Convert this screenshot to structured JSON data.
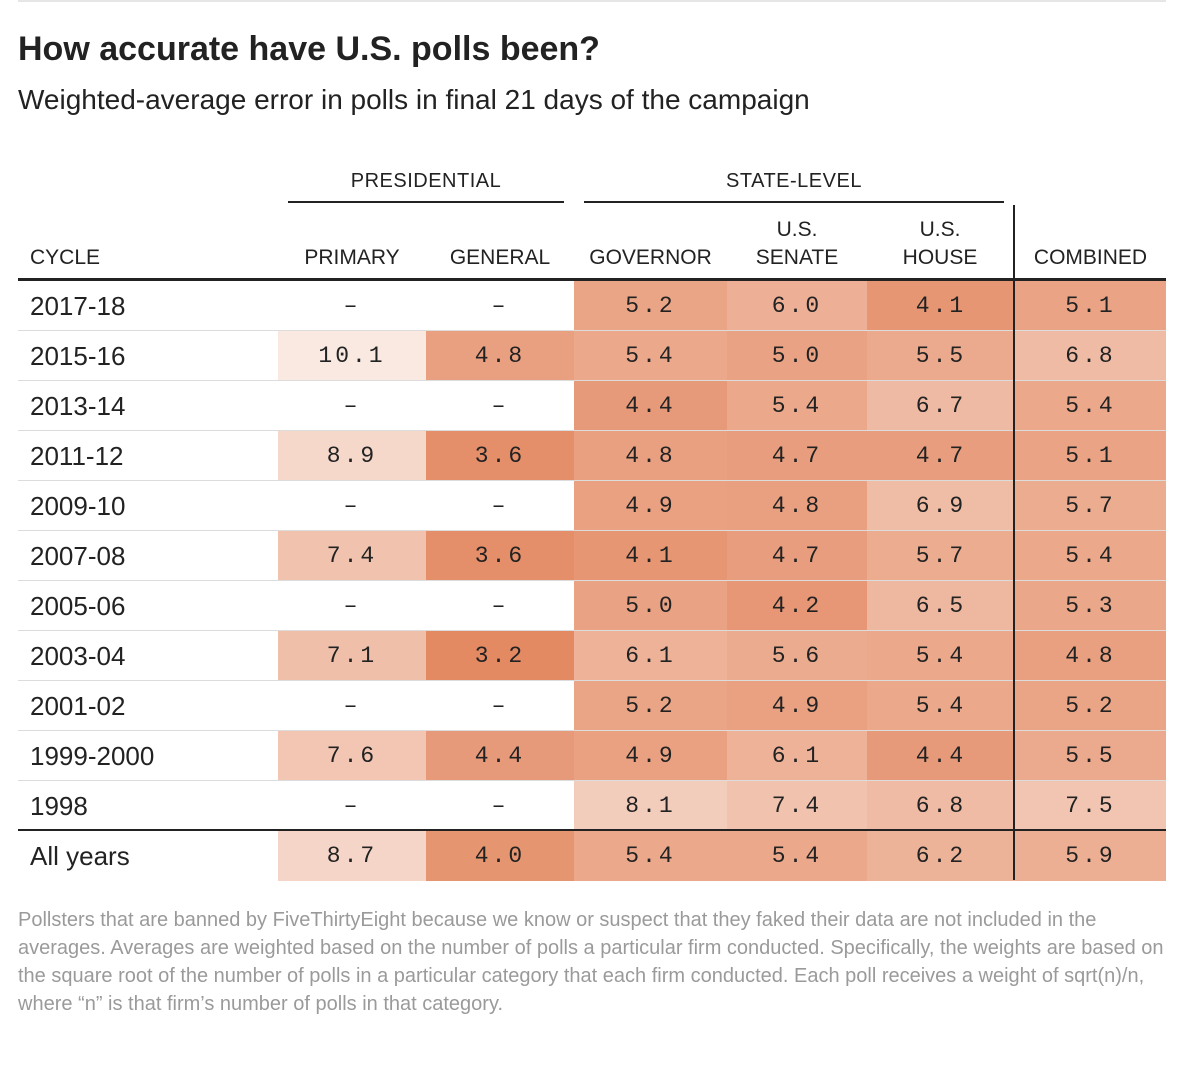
{
  "title": "How accurate have U.S. polls been?",
  "subtitle": "Weighted-average error in polls in final 21 days of the campaign",
  "groups": {
    "presidential": "PRESIDENTIAL",
    "state_level": "STATE-LEVEL"
  },
  "columns": {
    "cycle": "CYCLE",
    "primary": "PRIMARY",
    "general": "GENERAL",
    "governor": "GOVERNOR",
    "senate_line1": "U.S.",
    "senate_line2": "SENATE",
    "house_line1": "U.S.",
    "house_line2": "HOUSE",
    "combined": "COMBINED"
  },
  "chart_data": {
    "type": "table",
    "columns": [
      "CYCLE",
      "PRIMARY",
      "GENERAL",
      "GOVERNOR",
      "U.S. SENATE",
      "U.S. HOUSE",
      "COMBINED"
    ],
    "rows": [
      {
        "cycle": "2017-18",
        "values": [
          "–",
          "–",
          "5.2",
          "6.0",
          "4.1",
          "5.1"
        ]
      },
      {
        "cycle": "2015-16",
        "values": [
          "10.1",
          "4.8",
          "5.4",
          "5.0",
          "5.5",
          "6.8"
        ]
      },
      {
        "cycle": "2013-14",
        "values": [
          "–",
          "–",
          "4.4",
          "5.4",
          "6.7",
          "5.4"
        ]
      },
      {
        "cycle": "2011-12",
        "values": [
          "8.9",
          "3.6",
          "4.8",
          "4.7",
          "4.7",
          "5.1"
        ]
      },
      {
        "cycle": "2009-10",
        "values": [
          "–",
          "–",
          "4.9",
          "4.8",
          "6.9",
          "5.7"
        ]
      },
      {
        "cycle": "2007-08",
        "values": [
          "7.4",
          "3.6",
          "4.1",
          "4.7",
          "5.7",
          "5.4"
        ]
      },
      {
        "cycle": "2005-06",
        "values": [
          "–",
          "–",
          "5.0",
          "4.2",
          "6.5",
          "5.3"
        ]
      },
      {
        "cycle": "2003-04",
        "values": [
          "7.1",
          "3.2",
          "6.1",
          "5.6",
          "5.4",
          "4.8"
        ]
      },
      {
        "cycle": "2001-02",
        "values": [
          "–",
          "–",
          "5.2",
          "4.9",
          "5.4",
          "5.2"
        ]
      },
      {
        "cycle": "1999-2000",
        "values": [
          "7.6",
          "4.4",
          "4.9",
          "6.1",
          "4.4",
          "5.5"
        ]
      },
      {
        "cycle": "1998",
        "values": [
          "–",
          "–",
          "8.1",
          "7.4",
          "6.8",
          "7.5"
        ]
      },
      {
        "cycle": "All years",
        "values": [
          "8.7",
          "4.0",
          "5.4",
          "5.4",
          "6.2",
          "5.9"
        ]
      }
    ],
    "color_scale": {
      "low": "#e3875f",
      "high": "#fbeee8",
      "min": 3.0,
      "max": 10.5
    }
  },
  "footnote": "Pollsters that are banned by FiveThirtyEight because we know or suspect that they faked their data are not included in the averages. Averages are weighted based on the number of polls a particular firm conducted. Specifically, the weights are based on the square root of the number of polls in a particular category that each firm conducted. Each poll receives a weight of sqrt(n)/n, where “n” is that firm’s number of polls in that category."
}
